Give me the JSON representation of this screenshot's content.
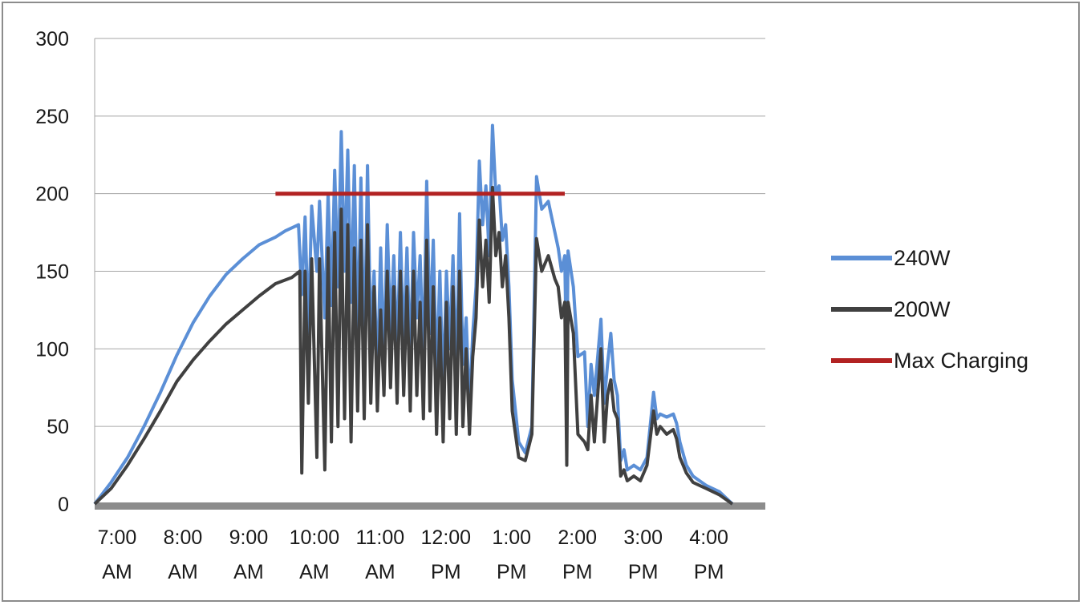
{
  "chart_data": {
    "type": "line",
    "title": "",
    "xlabel": "",
    "ylabel": "",
    "ylim": [
      0,
      300
    ],
    "yticks": [
      0,
      50,
      100,
      150,
      200,
      250,
      300
    ],
    "xlim": [
      7.0,
      17.2
    ],
    "xtick_labels": [
      {
        "x": 7,
        "line1": "7:00",
        "line2": "AM"
      },
      {
        "x": 8,
        "line1": "8:00",
        "line2": "AM"
      },
      {
        "x": 9,
        "line1": "9:00",
        "line2": "AM"
      },
      {
        "x": 10,
        "line1": "10:00",
        "line2": "AM"
      },
      {
        "x": 11,
        "line1": "11:00",
        "line2": "AM"
      },
      {
        "x": 12,
        "line1": "12:00",
        "line2": "PM"
      },
      {
        "x": 13,
        "line1": "1:00",
        "line2": "PM"
      },
      {
        "x": 14,
        "line1": "2:00",
        "line2": "PM"
      },
      {
        "x": 15,
        "line1": "3:00",
        "line2": "PM"
      },
      {
        "x": 16,
        "line1": "4:00",
        "line2": "PM"
      }
    ],
    "grid": true,
    "legend_position": "right",
    "series": [
      {
        "name": "240W",
        "color": "#5b8fd6",
        "points": [
          [
            7.0,
            0
          ],
          [
            7.25,
            14
          ],
          [
            7.5,
            30
          ],
          [
            7.75,
            50
          ],
          [
            8.0,
            72
          ],
          [
            8.25,
            96
          ],
          [
            8.5,
            117
          ],
          [
            8.75,
            134
          ],
          [
            9.0,
            148
          ],
          [
            9.25,
            158
          ],
          [
            9.5,
            167
          ],
          [
            9.75,
            172
          ],
          [
            9.9,
            176
          ],
          [
            10.0,
            178
          ],
          [
            10.1,
            180
          ],
          [
            10.15,
            135
          ],
          [
            10.2,
            185
          ],
          [
            10.25,
            110
          ],
          [
            10.3,
            192
          ],
          [
            10.38,
            150
          ],
          [
            10.42,
            195
          ],
          [
            10.5,
            120
          ],
          [
            10.55,
            200
          ],
          [
            10.6,
            128
          ],
          [
            10.65,
            215
          ],
          [
            10.7,
            140
          ],
          [
            10.75,
            240
          ],
          [
            10.8,
            150
          ],
          [
            10.85,
            228
          ],
          [
            10.9,
            130
          ],
          [
            10.95,
            218
          ],
          [
            11.0,
            100
          ],
          [
            11.05,
            210
          ],
          [
            11.1,
            90
          ],
          [
            11.15,
            218
          ],
          [
            11.2,
            105
          ],
          [
            11.25,
            150
          ],
          [
            11.3,
            80
          ],
          [
            11.35,
            165
          ],
          [
            11.4,
            90
          ],
          [
            11.45,
            180
          ],
          [
            11.5,
            110
          ],
          [
            11.55,
            160
          ],
          [
            11.6,
            95
          ],
          [
            11.65,
            175
          ],
          [
            11.7,
            100
          ],
          [
            11.75,
            165
          ],
          [
            11.8,
            90
          ],
          [
            11.85,
            175
          ],
          [
            11.9,
            120
          ],
          [
            11.95,
            160
          ],
          [
            12.0,
            90
          ],
          [
            12.05,
            208
          ],
          [
            12.1,
            110
          ],
          [
            12.15,
            170
          ],
          [
            12.2,
            80
          ],
          [
            12.25,
            150
          ],
          [
            12.3,
            70
          ],
          [
            12.35,
            150
          ],
          [
            12.4,
            100
          ],
          [
            12.45,
            160
          ],
          [
            12.5,
            80
          ],
          [
            12.55,
            187
          ],
          [
            12.6,
            90
          ],
          [
            12.65,
            120
          ],
          [
            12.7,
            60
          ],
          [
            12.75,
            110
          ],
          [
            12.8,
            140
          ],
          [
            12.85,
            221
          ],
          [
            12.9,
            180
          ],
          [
            12.95,
            205
          ],
          [
            13.0,
            160
          ],
          [
            13.05,
            244
          ],
          [
            13.1,
            200
          ],
          [
            13.15,
            205
          ],
          [
            13.2,
            170
          ],
          [
            13.25,
            180
          ],
          [
            13.3,
            140
          ],
          [
            13.35,
            80
          ],
          [
            13.45,
            40
          ],
          [
            13.55,
            33
          ],
          [
            13.65,
            50
          ],
          [
            13.72,
            211
          ],
          [
            13.8,
            190
          ],
          [
            13.9,
            195
          ],
          [
            14.0,
            175
          ],
          [
            14.05,
            165
          ],
          [
            14.1,
            150
          ],
          [
            14.15,
            160
          ],
          [
            14.18,
            80
          ],
          [
            14.2,
            163
          ],
          [
            14.28,
            140
          ],
          [
            14.35,
            95
          ],
          [
            14.45,
            98
          ],
          [
            14.5,
            50
          ],
          [
            14.55,
            90
          ],
          [
            14.6,
            70
          ],
          [
            14.7,
            119
          ],
          [
            14.75,
            65
          ],
          [
            14.8,
            90
          ],
          [
            14.85,
            110
          ],
          [
            14.9,
            80
          ],
          [
            14.95,
            70
          ],
          [
            15.0,
            28
          ],
          [
            15.05,
            35
          ],
          [
            15.1,
            22
          ],
          [
            15.2,
            25
          ],
          [
            15.3,
            22
          ],
          [
            15.4,
            30
          ],
          [
            15.5,
            72
          ],
          [
            15.55,
            55
          ],
          [
            15.6,
            58
          ],
          [
            15.7,
            56
          ],
          [
            15.8,
            58
          ],
          [
            15.85,
            52
          ],
          [
            15.9,
            40
          ],
          [
            16.0,
            25
          ],
          [
            16.1,
            18
          ],
          [
            16.2,
            15
          ],
          [
            16.3,
            12
          ],
          [
            16.5,
            8
          ],
          [
            16.7,
            0
          ]
        ]
      },
      {
        "name": "200W",
        "color": "#404040",
        "points": [
          [
            7.0,
            0
          ],
          [
            7.25,
            10
          ],
          [
            7.5,
            25
          ],
          [
            7.75,
            42
          ],
          [
            8.0,
            60
          ],
          [
            8.25,
            79
          ],
          [
            8.5,
            93
          ],
          [
            8.75,
            105
          ],
          [
            9.0,
            116
          ],
          [
            9.25,
            125
          ],
          [
            9.5,
            134
          ],
          [
            9.75,
            142
          ],
          [
            10.0,
            146
          ],
          [
            10.12,
            150
          ],
          [
            10.15,
            20
          ],
          [
            10.2,
            150
          ],
          [
            10.25,
            65
          ],
          [
            10.3,
            158
          ],
          [
            10.38,
            30
          ],
          [
            10.42,
            158
          ],
          [
            10.5,
            22
          ],
          [
            10.55,
            165
          ],
          [
            10.6,
            40
          ],
          [
            10.65,
            175
          ],
          [
            10.7,
            50
          ],
          [
            10.75,
            190
          ],
          [
            10.8,
            55
          ],
          [
            10.85,
            180
          ],
          [
            10.9,
            40
          ],
          [
            10.95,
            165
          ],
          [
            11.0,
            60
          ],
          [
            11.05,
            170
          ],
          [
            11.1,
            55
          ],
          [
            11.15,
            180
          ],
          [
            11.2,
            65
          ],
          [
            11.25,
            140
          ],
          [
            11.3,
            60
          ],
          [
            11.35,
            125
          ],
          [
            11.4,
            70
          ],
          [
            11.45,
            150
          ],
          [
            11.5,
            75
          ],
          [
            11.55,
            140
          ],
          [
            11.6,
            65
          ],
          [
            11.65,
            150
          ],
          [
            11.7,
            70
          ],
          [
            11.75,
            140
          ],
          [
            11.8,
            60
          ],
          [
            11.85,
            150
          ],
          [
            11.9,
            70
          ],
          [
            11.95,
            130
          ],
          [
            12.0,
            55
          ],
          [
            12.05,
            170
          ],
          [
            12.1,
            60
          ],
          [
            12.15,
            140
          ],
          [
            12.2,
            45
          ],
          [
            12.25,
            120
          ],
          [
            12.3,
            40
          ],
          [
            12.35,
            130
          ],
          [
            12.4,
            55
          ],
          [
            12.45,
            140
          ],
          [
            12.5,
            45
          ],
          [
            12.55,
            150
          ],
          [
            12.6,
            50
          ],
          [
            12.65,
            100
          ],
          [
            12.7,
            45
          ],
          [
            12.75,
            95
          ],
          [
            12.8,
            120
          ],
          [
            12.85,
            183
          ],
          [
            12.9,
            140
          ],
          [
            12.95,
            170
          ],
          [
            13.0,
            130
          ],
          [
            13.05,
            204
          ],
          [
            13.1,
            160
          ],
          [
            13.15,
            175
          ],
          [
            13.2,
            140
          ],
          [
            13.25,
            160
          ],
          [
            13.3,
            120
          ],
          [
            13.35,
            60
          ],
          [
            13.45,
            30
          ],
          [
            13.55,
            28
          ],
          [
            13.65,
            45
          ],
          [
            13.72,
            171
          ],
          [
            13.8,
            150
          ],
          [
            13.9,
            160
          ],
          [
            14.0,
            145
          ],
          [
            14.05,
            140
          ],
          [
            14.1,
            120
          ],
          [
            14.15,
            130
          ],
          [
            14.18,
            25
          ],
          [
            14.2,
            130
          ],
          [
            14.28,
            110
          ],
          [
            14.35,
            45
          ],
          [
            14.45,
            40
          ],
          [
            14.5,
            35
          ],
          [
            14.55,
            70
          ],
          [
            14.6,
            40
          ],
          [
            14.7,
            100
          ],
          [
            14.75,
            40
          ],
          [
            14.8,
            70
          ],
          [
            14.85,
            80
          ],
          [
            14.9,
            60
          ],
          [
            14.95,
            55
          ],
          [
            15.0,
            18
          ],
          [
            15.05,
            22
          ],
          [
            15.1,
            15
          ],
          [
            15.2,
            18
          ],
          [
            15.3,
            15
          ],
          [
            15.4,
            25
          ],
          [
            15.5,
            60
          ],
          [
            15.55,
            45
          ],
          [
            15.6,
            50
          ],
          [
            15.7,
            45
          ],
          [
            15.8,
            48
          ],
          [
            15.85,
            42
          ],
          [
            15.9,
            30
          ],
          [
            16.0,
            20
          ],
          [
            16.1,
            14
          ],
          [
            16.2,
            12
          ],
          [
            16.3,
            10
          ],
          [
            16.5,
            6
          ],
          [
            16.7,
            0
          ]
        ]
      },
      {
        "name": "Max Charging",
        "color": "#b22222",
        "points": [
          [
            9.75,
            200
          ],
          [
            14.15,
            200
          ]
        ]
      }
    ]
  }
}
